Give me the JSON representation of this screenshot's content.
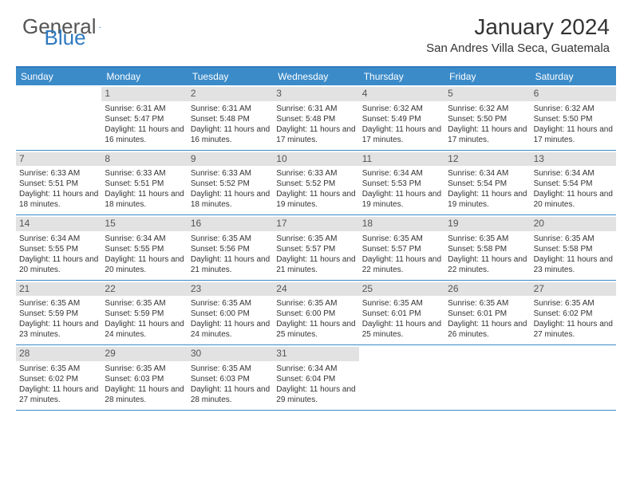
{
  "brand": {
    "part1": "General",
    "part2": "Blue"
  },
  "title": "January 2024",
  "location": "San Andres Villa Seca, Guatemala",
  "colors": {
    "header_blue": "#3b8bc9",
    "border_blue": "#2f7ac0",
    "daynum_bg": "#e2e2e2",
    "text": "#333333",
    "white": "#ffffff"
  },
  "typography": {
    "title_fontsize": 28,
    "location_fontsize": 15,
    "dow_fontsize": 12,
    "cell_fontsize": 10
  },
  "days_of_week": [
    "Sunday",
    "Monday",
    "Tuesday",
    "Wednesday",
    "Thursday",
    "Friday",
    "Saturday"
  ],
  "weeks": [
    [
      {
        "n": "",
        "sr": "",
        "ss": "",
        "dl": ""
      },
      {
        "n": "1",
        "sr": "Sunrise: 6:31 AM",
        "ss": "Sunset: 5:47 PM",
        "dl": "Daylight: 11 hours and 16 minutes."
      },
      {
        "n": "2",
        "sr": "Sunrise: 6:31 AM",
        "ss": "Sunset: 5:48 PM",
        "dl": "Daylight: 11 hours and 16 minutes."
      },
      {
        "n": "3",
        "sr": "Sunrise: 6:31 AM",
        "ss": "Sunset: 5:48 PM",
        "dl": "Daylight: 11 hours and 17 minutes."
      },
      {
        "n": "4",
        "sr": "Sunrise: 6:32 AM",
        "ss": "Sunset: 5:49 PM",
        "dl": "Daylight: 11 hours and 17 minutes."
      },
      {
        "n": "5",
        "sr": "Sunrise: 6:32 AM",
        "ss": "Sunset: 5:50 PM",
        "dl": "Daylight: 11 hours and 17 minutes."
      },
      {
        "n": "6",
        "sr": "Sunrise: 6:32 AM",
        "ss": "Sunset: 5:50 PM",
        "dl": "Daylight: 11 hours and 17 minutes."
      }
    ],
    [
      {
        "n": "7",
        "sr": "Sunrise: 6:33 AM",
        "ss": "Sunset: 5:51 PM",
        "dl": "Daylight: 11 hours and 18 minutes."
      },
      {
        "n": "8",
        "sr": "Sunrise: 6:33 AM",
        "ss": "Sunset: 5:51 PM",
        "dl": "Daylight: 11 hours and 18 minutes."
      },
      {
        "n": "9",
        "sr": "Sunrise: 6:33 AM",
        "ss": "Sunset: 5:52 PM",
        "dl": "Daylight: 11 hours and 18 minutes."
      },
      {
        "n": "10",
        "sr": "Sunrise: 6:33 AM",
        "ss": "Sunset: 5:52 PM",
        "dl": "Daylight: 11 hours and 19 minutes."
      },
      {
        "n": "11",
        "sr": "Sunrise: 6:34 AM",
        "ss": "Sunset: 5:53 PM",
        "dl": "Daylight: 11 hours and 19 minutes."
      },
      {
        "n": "12",
        "sr": "Sunrise: 6:34 AM",
        "ss": "Sunset: 5:54 PM",
        "dl": "Daylight: 11 hours and 19 minutes."
      },
      {
        "n": "13",
        "sr": "Sunrise: 6:34 AM",
        "ss": "Sunset: 5:54 PM",
        "dl": "Daylight: 11 hours and 20 minutes."
      }
    ],
    [
      {
        "n": "14",
        "sr": "Sunrise: 6:34 AM",
        "ss": "Sunset: 5:55 PM",
        "dl": "Daylight: 11 hours and 20 minutes."
      },
      {
        "n": "15",
        "sr": "Sunrise: 6:34 AM",
        "ss": "Sunset: 5:55 PM",
        "dl": "Daylight: 11 hours and 20 minutes."
      },
      {
        "n": "16",
        "sr": "Sunrise: 6:35 AM",
        "ss": "Sunset: 5:56 PM",
        "dl": "Daylight: 11 hours and 21 minutes."
      },
      {
        "n": "17",
        "sr": "Sunrise: 6:35 AM",
        "ss": "Sunset: 5:57 PM",
        "dl": "Daylight: 11 hours and 21 minutes."
      },
      {
        "n": "18",
        "sr": "Sunrise: 6:35 AM",
        "ss": "Sunset: 5:57 PM",
        "dl": "Daylight: 11 hours and 22 minutes."
      },
      {
        "n": "19",
        "sr": "Sunrise: 6:35 AM",
        "ss": "Sunset: 5:58 PM",
        "dl": "Daylight: 11 hours and 22 minutes."
      },
      {
        "n": "20",
        "sr": "Sunrise: 6:35 AM",
        "ss": "Sunset: 5:58 PM",
        "dl": "Daylight: 11 hours and 23 minutes."
      }
    ],
    [
      {
        "n": "21",
        "sr": "Sunrise: 6:35 AM",
        "ss": "Sunset: 5:59 PM",
        "dl": "Daylight: 11 hours and 23 minutes."
      },
      {
        "n": "22",
        "sr": "Sunrise: 6:35 AM",
        "ss": "Sunset: 5:59 PM",
        "dl": "Daylight: 11 hours and 24 minutes."
      },
      {
        "n": "23",
        "sr": "Sunrise: 6:35 AM",
        "ss": "Sunset: 6:00 PM",
        "dl": "Daylight: 11 hours and 24 minutes."
      },
      {
        "n": "24",
        "sr": "Sunrise: 6:35 AM",
        "ss": "Sunset: 6:00 PM",
        "dl": "Daylight: 11 hours and 25 minutes."
      },
      {
        "n": "25",
        "sr": "Sunrise: 6:35 AM",
        "ss": "Sunset: 6:01 PM",
        "dl": "Daylight: 11 hours and 25 minutes."
      },
      {
        "n": "26",
        "sr": "Sunrise: 6:35 AM",
        "ss": "Sunset: 6:01 PM",
        "dl": "Daylight: 11 hours and 26 minutes."
      },
      {
        "n": "27",
        "sr": "Sunrise: 6:35 AM",
        "ss": "Sunset: 6:02 PM",
        "dl": "Daylight: 11 hours and 27 minutes."
      }
    ],
    [
      {
        "n": "28",
        "sr": "Sunrise: 6:35 AM",
        "ss": "Sunset: 6:02 PM",
        "dl": "Daylight: 11 hours and 27 minutes."
      },
      {
        "n": "29",
        "sr": "Sunrise: 6:35 AM",
        "ss": "Sunset: 6:03 PM",
        "dl": "Daylight: 11 hours and 28 minutes."
      },
      {
        "n": "30",
        "sr": "Sunrise: 6:35 AM",
        "ss": "Sunset: 6:03 PM",
        "dl": "Daylight: 11 hours and 28 minutes."
      },
      {
        "n": "31",
        "sr": "Sunrise: 6:34 AM",
        "ss": "Sunset: 6:04 PM",
        "dl": "Daylight: 11 hours and 29 minutes."
      },
      {
        "n": "",
        "sr": "",
        "ss": "",
        "dl": ""
      },
      {
        "n": "",
        "sr": "",
        "ss": "",
        "dl": ""
      },
      {
        "n": "",
        "sr": "",
        "ss": "",
        "dl": ""
      }
    ]
  ]
}
